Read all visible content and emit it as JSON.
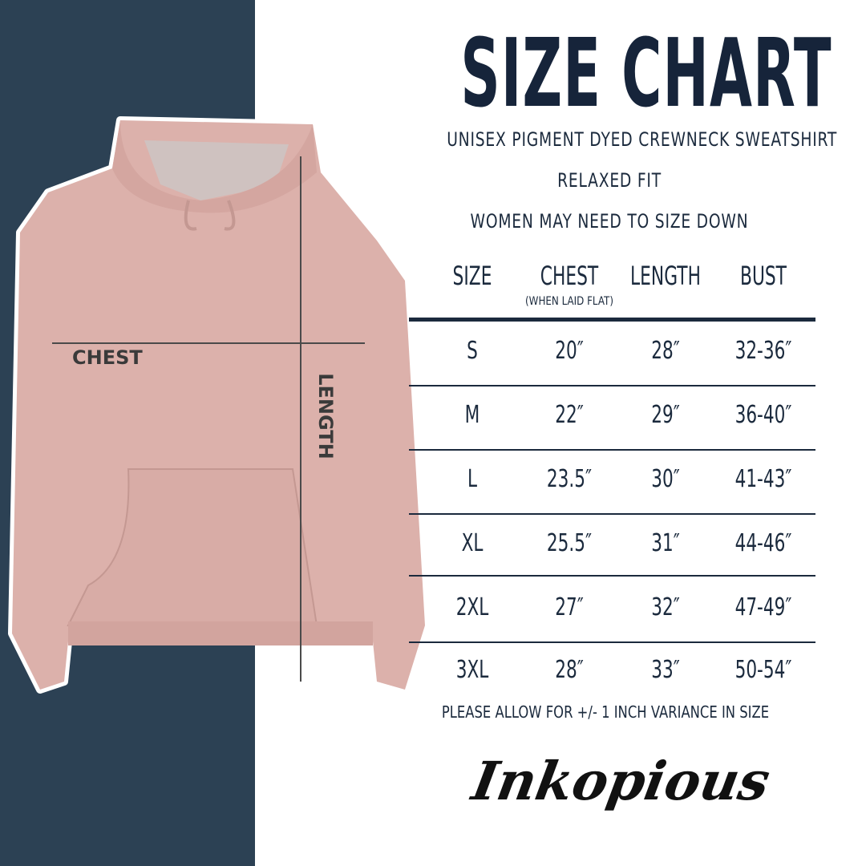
{
  "title": "SIZE CHART",
  "subtitle": "UNISEX PIGMENT DYED CREWNECK SWEATSHIRT",
  "fit": "RELAXED FIT",
  "note": "WOMEN MAY NEED TO SIZE DOWN",
  "table": {
    "headers": [
      "SIZE",
      "CHEST",
      "LENGTH",
      "BUST"
    ],
    "chest_note": "(WHEN LAID FLAT)",
    "rows": [
      [
        "S",
        "20″",
        "28″",
        "32-36″"
      ],
      [
        "M",
        "22″",
        "29″",
        "36-40″"
      ],
      [
        "L",
        "23.5″",
        "30″",
        "41-43″"
      ],
      [
        "XL",
        "25.5″",
        "31″",
        "44-46″"
      ],
      [
        "2XL",
        "27″",
        "32″",
        "47-49″"
      ],
      [
        "3XL",
        "28″",
        "33″",
        "50-54″"
      ]
    ]
  },
  "variance_note": "PLEASE ALLOW FOR +/- 1 INCH VARIANCE IN SIZE",
  "image_labels": {
    "chest": "CHEST",
    "length": "LENGTH"
  },
  "brand": "Inkopious",
  "colors": {
    "panel": "#2c4154",
    "text": "#1b2a3d",
    "hoodie": "#dcb1ab"
  }
}
